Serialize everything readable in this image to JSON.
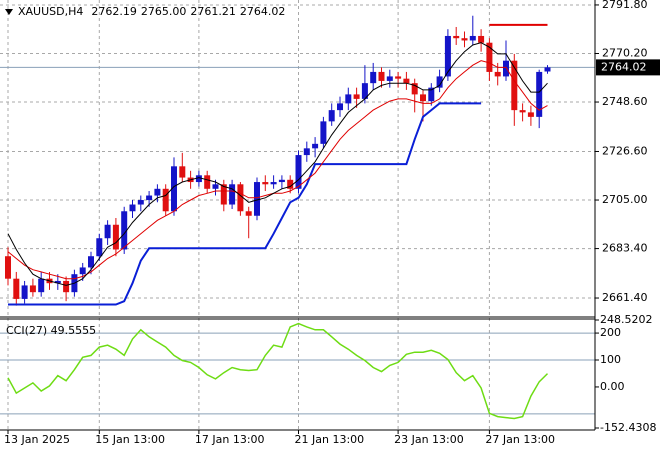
{
  "chart_data": [
    {
      "type": "candlestick",
      "title": "XAUUSD,H4",
      "header_values": [
        "2762.19",
        "2765.00",
        "2761.21",
        "2764.02"
      ],
      "categories": [
        "13 Jan 2025",
        null,
        null,
        null,
        null,
        null,
        null,
        null,
        null,
        null,
        null,
        "15 Jan 13:00",
        null,
        null,
        null,
        null,
        null,
        null,
        null,
        null,
        null,
        null,
        null,
        "17 Jan 13:00",
        null,
        null,
        null,
        null,
        null,
        null,
        null,
        null,
        null,
        null,
        null,
        "21 Jan 13:00",
        null,
        null,
        null,
        null,
        null,
        null,
        null,
        null,
        null,
        null,
        null,
        "23 Jan 13:00",
        null,
        null,
        null,
        null,
        null,
        null,
        null,
        null,
        null,
        null,
        "27 Jan 13:00",
        null,
        null,
        null,
        null,
        null,
        null,
        null
      ],
      "open": [
        2680,
        2670,
        2661,
        2667,
        2664,
        2670,
        2668,
        2669,
        2664,
        2672,
        2675,
        2680,
        2688,
        2694,
        2683,
        2700,
        2703,
        2705,
        2707,
        2710,
        2700,
        2720,
        2715,
        2713,
        2716,
        2710,
        2712,
        2703,
        2712,
        2700,
        2698,
        2713,
        2712,
        2713,
        2714,
        2710,
        2725,
        2728,
        2730,
        2740,
        2745,
        2748,
        2752,
        2750,
        2757,
        2762,
        2758,
        2760,
        2759,
        2757,
        2752,
        2749,
        2755,
        2760,
        2778,
        2777,
        2776,
        2778,
        2775,
        2762,
        2760,
        2767,
        2745,
        2744,
        2742,
        2762.19
      ],
      "high": [
        2684,
        2673,
        2669,
        2670,
        2673,
        2673,
        2672,
        2671,
        2674,
        2677,
        2682,
        2690,
        2696,
        2697,
        2702,
        2705,
        2707,
        2709,
        2712,
        2712,
        2724,
        2726,
        2718,
        2718,
        2718,
        2714,
        2714,
        2714,
        2713,
        2702,
        2715,
        2716,
        2716,
        2716,
        2716,
        2727,
        2731,
        2733,
        2742,
        2748,
        2751,
        2755,
        2755,
        2765,
        2766,
        2764,
        2763,
        2762,
        2762,
        2759,
        2754,
        2757,
        2763,
        2781,
        2782,
        2780,
        2787,
        2781,
        2777,
        2766,
        2776,
        2770,
        2748,
        2747,
        2763,
        2765.0
      ],
      "low": [
        2667,
        2658,
        2659,
        2662,
        2662,
        2665,
        2665,
        2660,
        2662,
        2669,
        2672,
        2678,
        2685,
        2680,
        2681,
        2697,
        2700,
        2702,
        2704,
        2698,
        2698,
        2713,
        2710,
        2711,
        2708,
        2707,
        2700,
        2701,
        2698,
        2688,
        2696,
        2709,
        2710,
        2710,
        2708,
        2708,
        2722,
        2724,
        2728,
        2738,
        2742,
        2745,
        2746,
        2748,
        2754,
        2755,
        2755,
        2755,
        2754,
        2744,
        2740,
        2747,
        2753,
        2758,
        2774,
        2773,
        2774,
        2771,
        2758,
        2756,
        2758,
        2738,
        2740,
        2738,
        2737,
        2761.21
      ],
      "close": [
        2670,
        2661,
        2667,
        2664,
        2670,
        2668,
        2669,
        2664,
        2672,
        2675,
        2680,
        2688,
        2694,
        2683,
        2700,
        2703,
        2705,
        2707,
        2710,
        2700,
        2720,
        2715,
        2713,
        2716,
        2710,
        2712,
        2703,
        2712,
        2700,
        2698,
        2713,
        2712,
        2713,
        2714,
        2710,
        2725,
        2728,
        2730,
        2740,
        2745,
        2748,
        2752,
        2750,
        2757,
        2762,
        2758,
        2760,
        2759,
        2757,
        2752,
        2749,
        2755,
        2760,
        2778,
        2777,
        2776,
        2778,
        2775,
        2762,
        2760,
        2767,
        2745,
        2744,
        2742,
        2762,
        2764.02
      ],
      "up_color": "#1414c8",
      "down_color": "#e01010",
      "series": [
        {
          "color": "#0a1fd6",
          "width": 2,
          "values": [
            2658.5,
            2658.5,
            2658.5,
            2658.5,
            2658.5,
            2658.5,
            2658.5,
            2658.5,
            2658.5,
            2658.5,
            2658.5,
            2658.5,
            2658.5,
            2658.5,
            2660,
            2668,
            2678,
            2683.5,
            2683.5,
            2683.5,
            2683.5,
            2683.5,
            2683.5,
            2683.5,
            2683.5,
            2683.5,
            2683.5,
            2683.5,
            2683.5,
            2683.5,
            2683.5,
            2683.5,
            2690,
            2697,
            2704,
            2706,
            2712,
            2721,
            2721,
            2721,
            2721,
            2721,
            2721,
            2721,
            2721,
            2721,
            2721,
            2721,
            2721,
            2732,
            2742,
            2745,
            2748,
            2748,
            2748,
            2748,
            2748,
            2748,
            null,
            null,
            null,
            null,
            null,
            null,
            null,
            null
          ]
        },
        {
          "color": "#e00000",
          "width": 1,
          "values": [
            2682,
            2679,
            2676,
            2674,
            2673,
            2672,
            2671,
            2670,
            2670,
            2671,
            2673,
            2676,
            2679,
            2681,
            2684,
            2687,
            2690,
            2693,
            2696,
            2698,
            2700,
            2703,
            2705,
            2707,
            2708,
            2709,
            2709,
            2709,
            2708,
            2706,
            2706,
            2707,
            2708,
            2708,
            2709,
            2711,
            2714,
            2717,
            2722,
            2727,
            2732,
            2736,
            2739,
            2742,
            2745,
            2747,
            2749,
            2750,
            2750,
            2749,
            2748,
            2748,
            2750,
            2755,
            2759,
            2762,
            2765,
            2767,
            2766,
            2764,
            2764,
            2758,
            2753,
            2748,
            2745,
            2747
          ]
        },
        {
          "color": "#000000",
          "width": 1,
          "values": [
            2690,
            2683,
            2677,
            2672,
            2670,
            2669,
            2668,
            2667,
            2668,
            2670,
            2674,
            2679,
            2684,
            2686,
            2690,
            2695,
            2699,
            2703,
            2706,
            2707,
            2711,
            2713,
            2714,
            2715,
            2714,
            2713,
            2711,
            2710,
            2707,
            2704,
            2705,
            2706,
            2708,
            2710,
            2711,
            2714,
            2718,
            2722,
            2728,
            2734,
            2739,
            2744,
            2747,
            2750,
            2754,
            2756,
            2757,
            2757,
            2757,
            2756,
            2754,
            2754,
            2756,
            2762,
            2767,
            2771,
            2774,
            2775,
            2773,
            2770,
            2770,
            2764,
            2758,
            2753,
            2753,
            2757
          ]
        },
        {
          "color": "#e00000",
          "width": 2,
          "values": [
            null,
            null,
            null,
            null,
            null,
            null,
            null,
            null,
            null,
            null,
            null,
            null,
            null,
            null,
            null,
            null,
            null,
            null,
            null,
            null,
            null,
            null,
            null,
            null,
            null,
            null,
            null,
            null,
            null,
            null,
            null,
            null,
            null,
            null,
            null,
            null,
            null,
            null,
            null,
            null,
            null,
            null,
            null,
            null,
            null,
            null,
            null,
            null,
            null,
            null,
            null,
            null,
            null,
            null,
            null,
            null,
            null,
            null,
            2782.9,
            2782.9,
            2782.9,
            2782.9,
            2782.9,
            2782.9,
            2782.9,
            2782.9
          ]
        }
      ],
      "current_price": {
        "value": 2764.02,
        "label": "2764.02"
      },
      "ylim": [
        2653.4,
        2794.0
      ],
      "yticks": [
        {
          "value": 2791.8,
          "label": "2791.80"
        },
        {
          "value": 2770.2,
          "label": "2770.20"
        },
        {
          "value": 2748.6,
          "label": "2748.60"
        },
        {
          "value": 2726.6,
          "label": "2726.60"
        },
        {
          "value": 2705,
          "label": "2705.00"
        },
        {
          "value": 2683.4,
          "label": "2683.40"
        },
        {
          "value": 2661.4,
          "label": "2661.40"
        }
      ],
      "grid": true
    },
    {
      "type": "line",
      "title": "CCI(27) 49.5555",
      "series": [
        {
          "color": "#6edc14",
          "values": [
            34,
            -23,
            -4,
            15,
            -15,
            4,
            42,
            23,
            64,
            110,
            117,
            148,
            155,
            140,
            117,
            178,
            212,
            186,
            167,
            148,
            117,
            98,
            91,
            72,
            45,
            30,
            53,
            72,
            64,
            61,
            64,
            117,
            155,
            148,
            223,
            235,
            223,
            212,
            212,
            186,
            159,
            140,
            117,
            98,
            72,
            57,
            80,
            91,
            121,
            129,
            129,
            136,
            125,
            102,
            53,
            23,
            42,
            -4,
            -98,
            -110,
            -114,
            -117,
            -110,
            -34,
            19,
            49.5555
          ]
        }
      ],
      "ylim": [
        -152.4308,
        248.5202
      ],
      "yticks": [
        248.5202,
        200,
        100,
        {
          "value": 0,
          "label": "0.00"
        },
        -152.4308
      ],
      "levels": [
        200,
        100,
        -100
      ]
    }
  ]
}
